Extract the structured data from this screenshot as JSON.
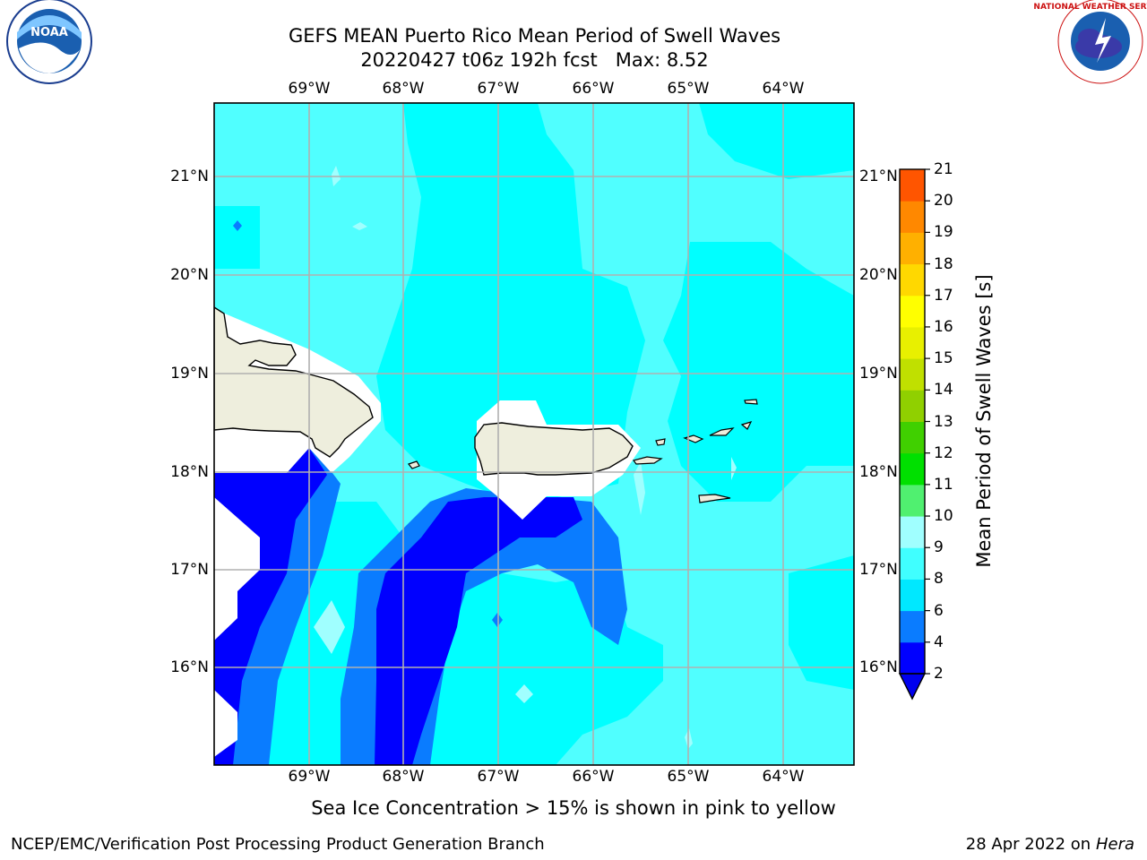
{
  "title_line1": "GEFS MEAN Puerto Rico Mean Period of Swell Waves",
  "title_line2": "20220427 t06z 192h fcst   Max: 8.52",
  "logos": {
    "left": {
      "name": "noaa-logo",
      "text": "NOAA"
    },
    "right": {
      "name": "nws-logo",
      "text": "NATIONAL WEATHER SERVICE"
    }
  },
  "map": {
    "longitude_labels": [
      "69°W",
      "68°W",
      "67°W",
      "66°W",
      "65°W",
      "64°W"
    ],
    "latitude_labels": [
      "21°N",
      "20°N",
      "19°N",
      "18°N",
      "17°N",
      "16°N"
    ],
    "islands": [
      "Hispaniola",
      "Puerto Rico",
      "Virgin Islands"
    ]
  },
  "colorbar": {
    "title": "Mean Period of Swell Waves [s]",
    "ticks": [
      "2",
      "4",
      "6",
      "8",
      "9",
      "10",
      "11",
      "12",
      "13",
      "14",
      "15",
      "16",
      "17",
      "18",
      "19",
      "20",
      "21"
    ],
    "colors": [
      "#0000ff",
      "#0a7cff",
      "#00e8ff",
      "#40ffff",
      "#a0ffff",
      "#50f070",
      "#00e000",
      "#40d000",
      "#90d000",
      "#c0e000",
      "#e8f000",
      "#ffff00",
      "#ffd800",
      "#ffb000",
      "#ff8800",
      "#ff5500",
      "#ff2000",
      "#ff0000"
    ],
    "underflow_color": "#0000ee"
  },
  "field_colors": {
    "deep_blue": "#0000ff",
    "mid_blue": "#0a7cff",
    "cyan": "#00ffff",
    "light_cyan": "#50ffff",
    "pale_cyan": "#a0ffff",
    "land": "#eeeedd",
    "masked": "#ffffff"
  },
  "caption": "Sea Ice Concentration > 15% is shown in pink to yellow",
  "footer_left": "NCEP/EMC/Verification Post Processing Product Generation Branch",
  "footer_date": "28 Apr 2022 on",
  "footer_machine": "Hera"
}
